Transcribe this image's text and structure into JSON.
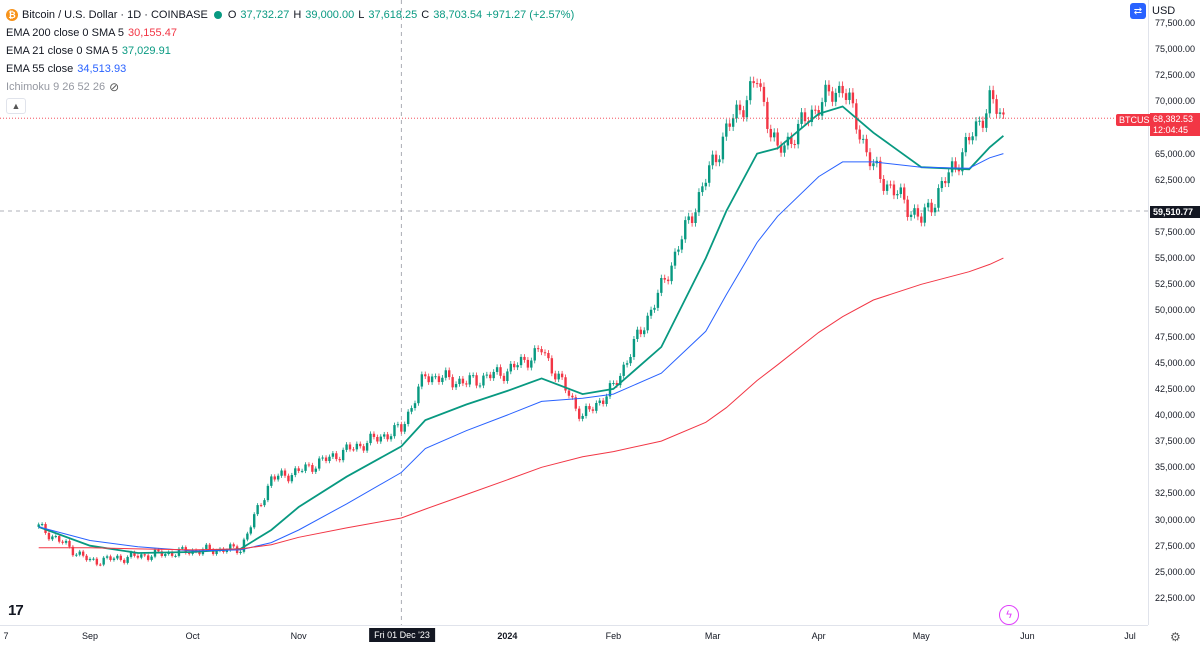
{
  "header": {
    "symbol": "Bitcoin / U.S. Dollar · 1D · COINBASE",
    "o_label": "O",
    "o_value": "37,732.27",
    "h_label": "H",
    "h_value": "39,000.00",
    "l_label": "L",
    "l_value": "37,618.25",
    "c_label": "C",
    "c_value": "38,703.54",
    "change": "+971.27 (+2.57%)"
  },
  "indicators": [
    {
      "name": "EMA 200 close 0 SMA 5",
      "value": "30,155.47",
      "color": "#f23645"
    },
    {
      "name": "EMA 21 close 0 SMA 5",
      "value": "37,029.91",
      "color": "#089981"
    },
    {
      "name": "EMA 55 close",
      "value": "34,513.93",
      "color": "#2962ff"
    },
    {
      "name": "Ichimoku 9 26 52 26",
      "value": "",
      "color": "#9598a1"
    }
  ],
  "currency_label": "USD",
  "tags": {
    "symbol_tag": "BTCUSD",
    "last_price": "68,382.53",
    "countdown": "12:04:45",
    "crosshair_price": "59,510.77",
    "crosshair_time": "Fri 01 Dec '23"
  },
  "price_ticks": [
    "77,500.00",
    "75,000.00",
    "72,500.00",
    "70,000.00",
    "67,500.00",
    "65,000.00",
    "62,500.00",
    "57,500.00",
    "55,000.00",
    "52,500.00",
    "50,000.00",
    "47,500.00",
    "45,000.00",
    "42,500.00",
    "40,000.00",
    "37,500.00",
    "35,000.00",
    "32,500.00",
    "30,000.00",
    "27,500.00",
    "25,000.00",
    "22,500.00"
  ],
  "time_ticks": [
    "7",
    "Sep",
    "Oct",
    "Nov",
    "2024",
    "Feb",
    "Mar",
    "Apr",
    "May",
    "Jun",
    "Jul"
  ],
  "chart_data": {
    "type": "line",
    "title": "Bitcoin / U.S. Dollar · 1D · COINBASE",
    "ylim": [
      21000,
      79000
    ],
    "grid": false,
    "price_colors": {
      "up": "#089981",
      "down": "#f23645"
    },
    "x": [
      "2023-08-17",
      "2023-09-01",
      "2023-09-15",
      "2023-10-01",
      "2023-10-15",
      "2023-10-24",
      "2023-11-01",
      "2023-11-15",
      "2023-12-01",
      "2023-12-08",
      "2023-12-20",
      "2024-01-01",
      "2024-01-11",
      "2024-01-23",
      "2024-02-01",
      "2024-02-15",
      "2024-02-28",
      "2024-03-05",
      "2024-03-14",
      "2024-03-20",
      "2024-04-01",
      "2024-04-08",
      "2024-04-17",
      "2024-05-01",
      "2024-05-15",
      "2024-05-21",
      "2024-05-25"
    ],
    "series": [
      {
        "name": "BTCUSD",
        "color": "#089981",
        "values": [
          29300,
          26000,
          26500,
          27000,
          27200,
          33900,
          34600,
          36600,
          38700,
          43800,
          43100,
          44200,
          46200,
          39800,
          42600,
          52100,
          62500,
          67200,
          72000,
          65000,
          69700,
          71500,
          63500,
          58600,
          66200,
          70000,
          68383
        ]
      },
      {
        "name": "EMA 21 close 0 SMA 5",
        "color": "#089981",
        "values": [
          29300,
          27500,
          26800,
          26900,
          27200,
          29000,
          31200,
          34100,
          37000,
          39500,
          41000,
          42300,
          43500,
          42000,
          42500,
          46500,
          55000,
          59500,
          65000,
          65500,
          68800,
          69500,
          67000,
          63700,
          63500,
          65600,
          66700
        ]
      },
      {
        "name": "EMA 55 close",
        "color": "#2962ff",
        "values": [
          29300,
          28000,
          27400,
          27000,
          27100,
          27800,
          29000,
          31500,
          34500,
          36800,
          38500,
          40000,
          41300,
          41600,
          42000,
          44000,
          48000,
          51500,
          56500,
          59000,
          62800,
          64200,
          64200,
          63700,
          63600,
          64600,
          65000
        ]
      },
      {
        "name": "EMA 200 close 0 SMA 5",
        "color": "#f23645",
        "values": [
          27300,
          27300,
          27200,
          27100,
          27200,
          27600,
          28300,
          29200,
          30155,
          31000,
          32400,
          33800,
          35000,
          36000,
          36500,
          37500,
          39300,
          40700,
          43300,
          44800,
          47900,
          49400,
          51000,
          52500,
          53700,
          54400,
          55000
        ]
      }
    ]
  }
}
